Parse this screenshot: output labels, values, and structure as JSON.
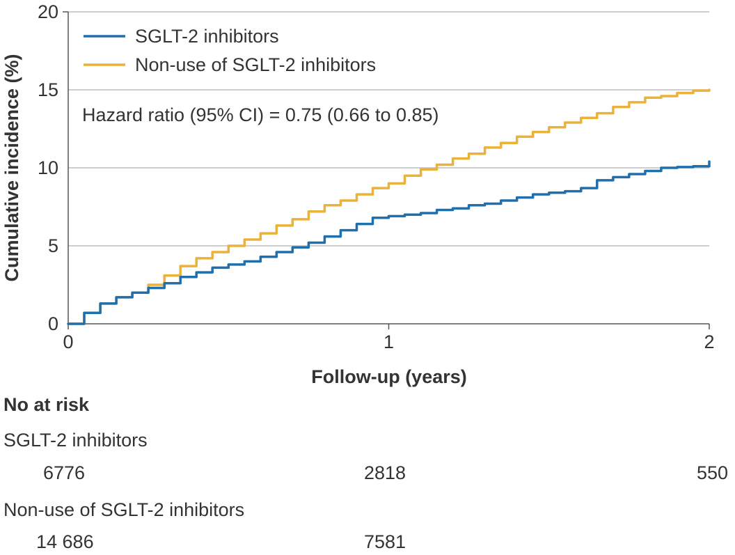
{
  "chart_data": {
    "type": "line",
    "title": "",
    "xlabel": "Follow-up (years)",
    "ylabel": "Cumulative incidence (%)",
    "xlim": [
      0,
      2
    ],
    "ylim": [
      0,
      20
    ],
    "x_ticks": [
      0,
      1,
      2
    ],
    "x_tick_labels": [
      "0",
      "1",
      "2"
    ],
    "y_ticks": [
      0,
      5,
      10,
      15,
      20
    ],
    "y_tick_labels": [
      "0",
      "5",
      "10",
      "15",
      "20"
    ],
    "grid": "horizontal",
    "legend_position": "top-left",
    "annotation": "Hazard ratio (95% CI) = 0.75 (0.66 to 0.85)",
    "series": [
      {
        "name": "SGLT-2 inhibitors",
        "color": "#1f6fad",
        "step": true,
        "x": [
          0,
          0.05,
          0.1,
          0.15,
          0.2,
          0.25,
          0.3,
          0.35,
          0.4,
          0.45,
          0.5,
          0.55,
          0.6,
          0.65,
          0.7,
          0.75,
          0.8,
          0.85,
          0.9,
          0.95,
          1.0,
          1.05,
          1.1,
          1.15,
          1.2,
          1.25,
          1.3,
          1.35,
          1.4,
          1.45,
          1.5,
          1.55,
          1.6,
          1.65,
          1.7,
          1.75,
          1.8,
          1.85,
          1.9,
          1.95,
          2.0
        ],
        "y": [
          0,
          0.7,
          1.3,
          1.7,
          2.0,
          2.3,
          2.6,
          3.0,
          3.3,
          3.6,
          3.8,
          4.0,
          4.3,
          4.6,
          4.9,
          5.2,
          5.6,
          6.0,
          6.4,
          6.8,
          6.9,
          7.0,
          7.1,
          7.3,
          7.4,
          7.6,
          7.7,
          7.9,
          8.1,
          8.3,
          8.4,
          8.5,
          8.7,
          9.2,
          9.4,
          9.6,
          9.8,
          10.0,
          10.05,
          10.1,
          10.4
        ]
      },
      {
        "name": "Non-use of SGLT-2 inhibitors",
        "color": "#eab23a",
        "step": true,
        "x": [
          0,
          0.05,
          0.1,
          0.15,
          0.2,
          0.25,
          0.3,
          0.35,
          0.4,
          0.45,
          0.5,
          0.55,
          0.6,
          0.65,
          0.7,
          0.75,
          0.8,
          0.85,
          0.9,
          0.95,
          1.0,
          1.05,
          1.1,
          1.15,
          1.2,
          1.25,
          1.3,
          1.35,
          1.4,
          1.45,
          1.5,
          1.55,
          1.6,
          1.65,
          1.7,
          1.75,
          1.8,
          1.85,
          1.9,
          1.95,
          2.0
        ],
        "y": [
          0,
          0.7,
          1.3,
          1.7,
          2.0,
          2.5,
          3.1,
          3.7,
          4.2,
          4.6,
          5.0,
          5.4,
          5.8,
          6.3,
          6.7,
          7.2,
          7.6,
          7.9,
          8.3,
          8.7,
          9.0,
          9.5,
          9.9,
          10.2,
          10.6,
          10.9,
          11.3,
          11.6,
          12.0,
          12.3,
          12.6,
          12.9,
          13.2,
          13.5,
          13.9,
          14.2,
          14.5,
          14.6,
          14.8,
          14.95,
          15.0
        ]
      }
    ],
    "risk_table": {
      "title": "No at risk",
      "groups": [
        {
          "label": "SGLT-2 inhibitors",
          "counts": [
            "6776",
            "2818",
            "550"
          ]
        },
        {
          "label": "Non-use of SGLT-2 inhibitors",
          "counts": [
            "14 686",
            "7581",
            ""
          ]
        }
      ]
    }
  }
}
